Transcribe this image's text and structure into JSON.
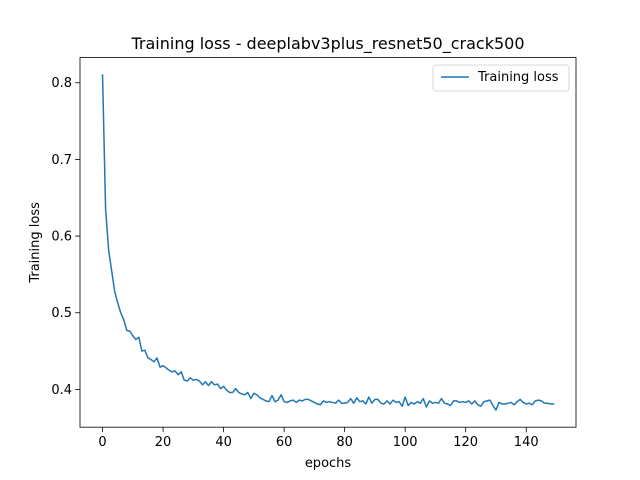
{
  "chart_data": {
    "type": "line",
    "title": "Training loss - deeplabv3plus_resnet50_crack500",
    "xlabel": "epochs",
    "ylabel": "Training loss",
    "xlim": [
      -7.45,
      156.45
    ],
    "ylim": [
      0.3507,
      0.8328
    ],
    "xticks": [
      0,
      20,
      40,
      60,
      80,
      100,
      120,
      140
    ],
    "yticks": [
      0.4,
      0.5,
      0.6,
      0.7,
      0.8
    ],
    "ytick_labels": [
      "0.4",
      "0.5",
      "0.6",
      "0.7",
      "0.8"
    ],
    "grid": false,
    "legend": {
      "position": "upper-right"
    },
    "series": [
      {
        "name": "Training loss",
        "color": "#1f77b4",
        "x": [
          0,
          1,
          2,
          3,
          4,
          5,
          6,
          7,
          8,
          9,
          10,
          11,
          12,
          13,
          14,
          15,
          16,
          17,
          18,
          19,
          20,
          21,
          22,
          23,
          24,
          25,
          26,
          27,
          28,
          29,
          30,
          31,
          32,
          33,
          34,
          35,
          36,
          37,
          38,
          39,
          40,
          41,
          42,
          43,
          44,
          45,
          46,
          47,
          48,
          49,
          50,
          51,
          52,
          53,
          54,
          55,
          56,
          57,
          58,
          59,
          60,
          61,
          62,
          63,
          64,
          65,
          66,
          67,
          68,
          69,
          70,
          71,
          72,
          73,
          74,
          75,
          76,
          77,
          78,
          79,
          80,
          81,
          82,
          83,
          84,
          85,
          86,
          87,
          88,
          89,
          90,
          91,
          92,
          93,
          94,
          95,
          96,
          97,
          98,
          99,
          100,
          101,
          102,
          103,
          104,
          105,
          106,
          107,
          108,
          109,
          110,
          111,
          112,
          113,
          114,
          115,
          116,
          117,
          118,
          119,
          120,
          121,
          122,
          123,
          124,
          125,
          126,
          127,
          128,
          129,
          130,
          131,
          132,
          133,
          134,
          135,
          136,
          137,
          138,
          139,
          140,
          141,
          142,
          143,
          144,
          145,
          146,
          147,
          148,
          149
        ],
        "values": [
          0.81,
          0.636,
          0.582,
          0.555,
          0.528,
          0.513,
          0.5,
          0.491,
          0.477,
          0.476,
          0.47,
          0.465,
          0.468,
          0.45,
          0.451,
          0.441,
          0.439,
          0.436,
          0.441,
          0.429,
          0.431,
          0.428,
          0.425,
          0.423,
          0.424,
          0.419,
          0.423,
          0.412,
          0.411,
          0.415,
          0.412,
          0.413,
          0.411,
          0.406,
          0.41,
          0.405,
          0.41,
          0.406,
          0.407,
          0.401,
          0.404,
          0.399,
          0.396,
          0.396,
          0.401,
          0.396,
          0.394,
          0.393,
          0.396,
          0.388,
          0.395,
          0.393,
          0.389,
          0.387,
          0.385,
          0.384,
          0.392,
          0.384,
          0.386,
          0.393,
          0.384,
          0.383,
          0.385,
          0.386,
          0.383,
          0.386,
          0.385,
          0.387,
          0.387,
          0.385,
          0.383,
          0.381,
          0.38,
          0.385,
          0.383,
          0.384,
          0.383,
          0.382,
          0.386,
          0.382,
          0.382,
          0.383,
          0.388,
          0.382,
          0.389,
          0.384,
          0.385,
          0.381,
          0.39,
          0.382,
          0.387,
          0.387,
          0.382,
          0.381,
          0.385,
          0.381,
          0.386,
          0.383,
          0.384,
          0.378,
          0.39,
          0.379,
          0.383,
          0.381,
          0.384,
          0.382,
          0.388,
          0.377,
          0.385,
          0.382,
          0.383,
          0.382,
          0.388,
          0.382,
          0.381,
          0.379,
          0.385,
          0.385,
          0.383,
          0.384,
          0.383,
          0.385,
          0.381,
          0.385,
          0.38,
          0.378,
          0.384,
          0.385,
          0.386,
          0.379,
          0.373,
          0.383,
          0.381,
          0.381,
          0.382,
          0.383,
          0.38,
          0.384,
          0.387,
          0.383,
          0.381,
          0.382,
          0.38,
          0.385,
          0.386,
          0.385,
          0.382,
          0.382,
          0.381,
          0.381
        ]
      }
    ]
  }
}
